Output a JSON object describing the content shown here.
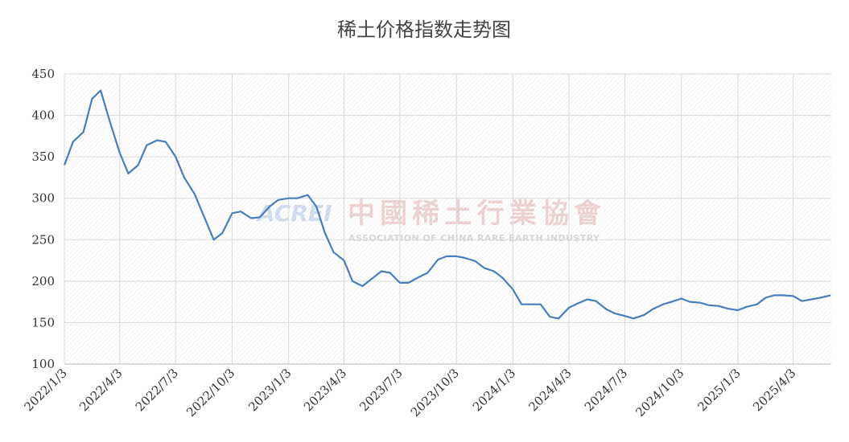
{
  "chart_data": {
    "type": "line",
    "title": "稀土价格指数走势图",
    "watermark": {
      "logo": "ACREI",
      "name": "中國稀土行業協會",
      "subtitle": "ASSOCIATION OF CHINA RARE EARTH INDUSTRY"
    },
    "x": [
      "2022/1/3",
      "2022/1/17",
      "2022/2/3",
      "2022/2/17",
      "2022/3/3",
      "2022/3/17",
      "2022/4/3",
      "2022/4/17",
      "2022/5/3",
      "2022/5/17",
      "2022/6/3",
      "2022/6/17",
      "2022/7/3",
      "2022/7/17",
      "2022/8/3",
      "2022/8/17",
      "2022/9/3",
      "2022/9/17",
      "2022/10/3",
      "2022/10/17",
      "2022/11/3",
      "2022/11/17",
      "2022/12/3",
      "2022/12/17",
      "2023/1/3",
      "2023/1/17",
      "2023/2/3",
      "2023/2/17",
      "2023/3/3",
      "2023/3/17",
      "2023/4/3",
      "2023/4/17",
      "2023/5/3",
      "2023/5/17",
      "2023/6/3",
      "2023/6/17",
      "2023/7/3",
      "2023/7/17",
      "2023/8/3",
      "2023/8/17",
      "2023/9/3",
      "2023/9/17",
      "2023/10/3",
      "2023/10/17",
      "2023/11/3",
      "2023/11/17",
      "2023/12/3",
      "2023/12/17",
      "2024/1/3",
      "2024/1/17",
      "2024/2/3",
      "2024/2/17",
      "2024/3/3",
      "2024/3/17",
      "2024/4/3",
      "2024/4/17",
      "2024/5/3",
      "2024/5/17",
      "2024/6/3",
      "2024/6/17",
      "2024/7/3",
      "2024/7/17",
      "2024/8/3",
      "2024/8/17",
      "2024/9/3",
      "2024/9/17",
      "2024/10/3",
      "2024/10/17",
      "2024/11/3",
      "2024/11/17",
      "2024/12/3",
      "2024/12/17",
      "2025/1/3",
      "2025/1/17",
      "2025/2/3",
      "2025/2/17",
      "2025/3/3",
      "2025/3/17",
      "2025/4/3",
      "2025/4/17",
      "2025/5/3",
      "2025/5/17",
      "2025/6/3"
    ],
    "series": [
      {
        "name": "稀土价格指数",
        "color": "#4a7ebb",
        "values": [
          340,
          368,
          380,
          420,
          430,
          395,
          355,
          330,
          340,
          364,
          370,
          368,
          350,
          325,
          305,
          280,
          250,
          258,
          282,
          284,
          276,
          277,
          290,
          298,
          300,
          300,
          304,
          290,
          258,
          235,
          225,
          200,
          194,
          202,
          212,
          210,
          198,
          198,
          205,
          210,
          226,
          230,
          230,
          228,
          224,
          216,
          212,
          204,
          190,
          172,
          172,
          172,
          157,
          155,
          168,
          173,
          178,
          176,
          166,
          161,
          158,
          155,
          159,
          166,
          172,
          175,
          179,
          175,
          174,
          171,
          170,
          167,
          165,
          169,
          172,
          180,
          183,
          183,
          182,
          176,
          178,
          180,
          183
        ]
      }
    ],
    "xlim": [
      "2022/1/3",
      "2025/6/4"
    ],
    "xticks": [
      "2022/1/3",
      "2022/4/3",
      "2022/7/3",
      "2022/10/3",
      "2023/1/3",
      "2023/4/3",
      "2023/7/3",
      "2023/10/3",
      "2024/1/3",
      "2024/4/3",
      "2024/7/3",
      "2024/10/3",
      "2025/1/3",
      "2025/4/3"
    ],
    "ylim": [
      100,
      450
    ],
    "yticks": [
      100,
      150,
      200,
      250,
      300,
      350,
      400,
      450
    ],
    "grid": true
  }
}
